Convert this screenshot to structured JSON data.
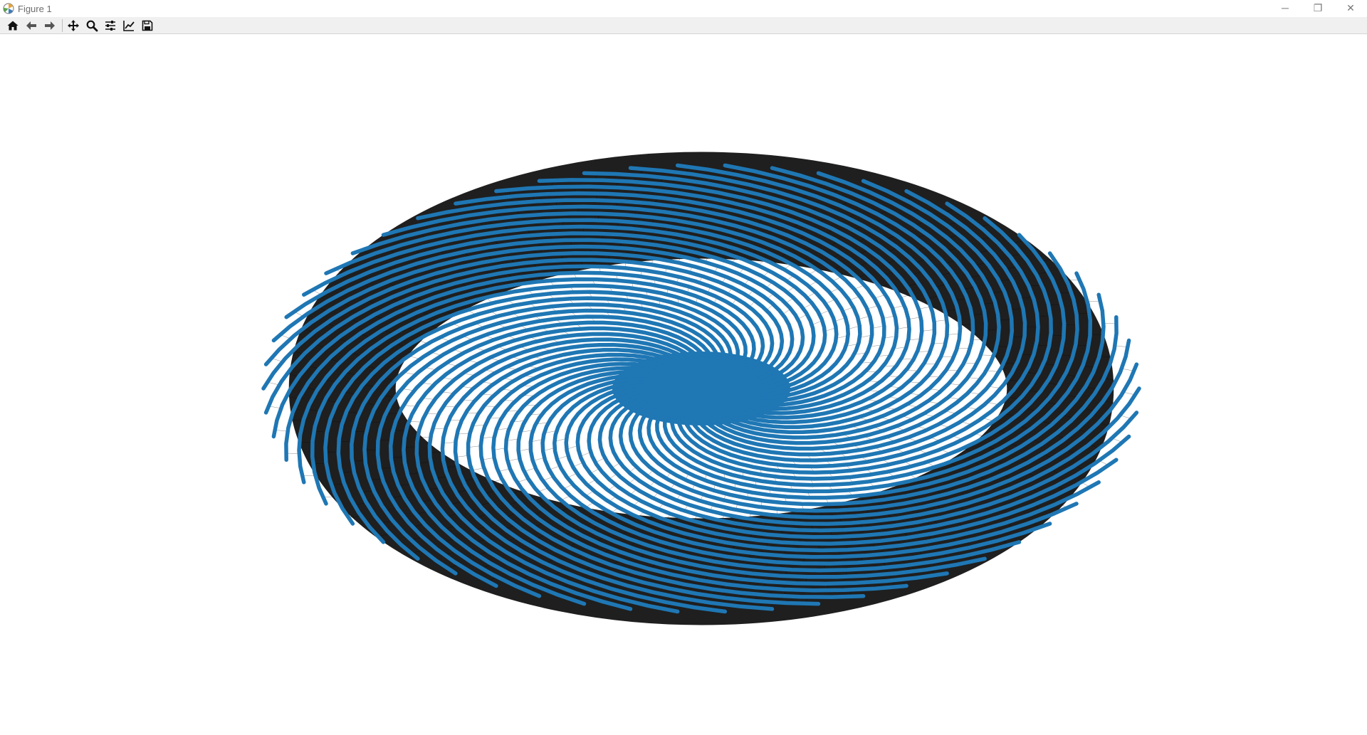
{
  "window": {
    "title": "Figure 1",
    "controls": {
      "minimize": "─",
      "maximize": "❐",
      "close": "✕"
    }
  },
  "toolbar": {
    "buttons": [
      {
        "name": "home-button",
        "icon": "home-icon"
      },
      {
        "name": "back-button",
        "icon": "arrow-left-icon"
      },
      {
        "name": "forward-button",
        "icon": "arrow-right-icon"
      },
      {
        "name": "pan-button",
        "icon": "move-icon"
      },
      {
        "name": "zoom-button",
        "icon": "magnifier-icon"
      },
      {
        "name": "configure-subplots-button",
        "icon": "sliders-icon"
      },
      {
        "name": "edit-axes-button",
        "icon": "chart-line-icon"
      },
      {
        "name": "save-button",
        "icon": "floppy-icon"
      }
    ]
  },
  "figure": {
    "node_color": "#1f77b4",
    "edge_color": "#000000",
    "background": "#ffffff"
  }
}
